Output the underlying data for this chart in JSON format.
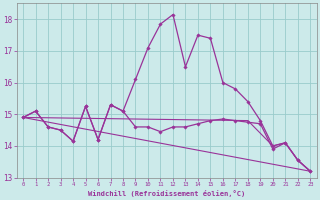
{
  "xlabel": "Windchill (Refroidissement éolien,°C)",
  "xlim": [
    -0.5,
    23.5
  ],
  "ylim": [
    13,
    18.5
  ],
  "yticks": [
    13,
    14,
    15,
    16,
    17,
    18
  ],
  "xticks": [
    0,
    1,
    2,
    3,
    4,
    5,
    6,
    7,
    8,
    9,
    10,
    11,
    12,
    13,
    14,
    15,
    16,
    17,
    18,
    19,
    20,
    21,
    22,
    23
  ],
  "bg_color": "#cceaea",
  "line_color": "#993399",
  "grid_color": "#99cccc",
  "series": [
    {
      "x": [
        0,
        1,
        2,
        3,
        4,
        5,
        6,
        7,
        8,
        9,
        10,
        11,
        12,
        13,
        14,
        15,
        16,
        17,
        18,
        19,
        20,
        21,
        22,
        23
      ],
      "y": [
        14.9,
        15.1,
        14.6,
        14.5,
        14.15,
        15.25,
        14.2,
        15.3,
        15.1,
        14.6,
        14.6,
        14.45,
        14.6,
        14.6,
        14.7,
        14.8,
        14.85,
        14.8,
        14.75,
        14.7,
        13.9,
        14.1,
        13.55,
        13.2
      ],
      "marker": true,
      "lw": 0.9
    },
    {
      "x": [
        0,
        1,
        2,
        3,
        4,
        5,
        6,
        7,
        8,
        9,
        10,
        11,
        12,
        13,
        14,
        15,
        16,
        17,
        18,
        19,
        20,
        21,
        22,
        23
      ],
      "y": [
        14.9,
        15.1,
        14.6,
        14.5,
        14.15,
        15.25,
        14.2,
        15.3,
        15.1,
        16.1,
        17.1,
        17.85,
        18.15,
        16.5,
        17.5,
        17.4,
        16.0,
        15.8,
        15.4,
        14.8,
        14.0,
        14.1,
        13.55,
        13.2
      ],
      "marker": true,
      "lw": 0.9
    },
    {
      "x": [
        0,
        23
      ],
      "y": [
        14.9,
        13.2
      ],
      "marker": false,
      "lw": 0.8
    },
    {
      "x": [
        0,
        18,
        20,
        21,
        22,
        23
      ],
      "y": [
        14.9,
        14.8,
        14.0,
        14.1,
        13.55,
        13.2
      ],
      "marker": false,
      "lw": 0.8
    }
  ]
}
